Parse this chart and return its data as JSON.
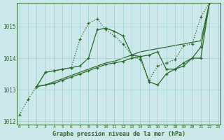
{
  "title": "Graphe pression niveau de la mer (hPa)",
  "bg_color": "#cce8ea",
  "grid_color": "#9ecdd0",
  "line_color": "#2d6a2d",
  "series": {
    "line1": {
      "comment": "dotted line with + markers, big excursion up then down",
      "x": [
        0,
        1,
        2,
        3,
        4,
        5,
        6,
        7,
        8,
        9,
        10,
        11,
        12,
        13,
        14,
        15,
        16,
        17,
        18,
        19,
        20,
        21,
        22,
        23
      ],
      "y": [
        1012.2,
        1012.7,
        1013.1,
        1013.55,
        1013.6,
        1013.65,
        1013.7,
        1014.6,
        1015.1,
        1015.25,
        1014.9,
        1014.7,
        1014.45,
        1014.1,
        1013.95,
        1013.3,
        1013.75,
        1013.85,
        1013.95,
        1014.4,
        1014.45,
        1015.3,
        1015.75,
        1015.8
      ]
    },
    "line2": {
      "comment": "solid line with + markers, moderate peak then dip",
      "x": [
        2,
        3,
        4,
        5,
        6,
        7,
        8,
        9,
        10,
        11,
        12,
        13,
        14,
        15,
        16,
        17,
        18,
        19,
        20,
        21,
        22,
        23
      ],
      "y": [
        1013.1,
        1013.55,
        1013.6,
        1013.65,
        1013.7,
        1013.75,
        1014.0,
        1014.9,
        1014.95,
        1014.85,
        1014.7,
        1014.1,
        1014.05,
        1013.25,
        1013.15,
        1013.5,
        1013.65,
        1013.85,
        1014.0,
        1014.0,
        1015.75,
        1015.8
      ]
    },
    "line3": {
      "comment": "near-straight solid line with + markers - diagonal",
      "x": [
        2,
        3,
        4,
        5,
        6,
        7,
        8,
        9,
        10,
        11,
        12,
        13,
        14,
        15,
        16,
        17,
        18,
        19,
        20,
        21,
        22,
        23
      ],
      "y": [
        1013.1,
        1013.15,
        1013.2,
        1013.3,
        1013.4,
        1013.5,
        1013.6,
        1013.7,
        1013.8,
        1013.85,
        1013.9,
        1014.0,
        1014.05,
        1014.1,
        1014.2,
        1013.65,
        1013.65,
        1013.75,
        1014.0,
        1014.35,
        1015.75,
        1015.8
      ]
    },
    "line4": {
      "comment": "solid straight-ish diagonal line from x=2 to x=23",
      "x": [
        2,
        3,
        4,
        5,
        6,
        7,
        8,
        9,
        10,
        11,
        12,
        13,
        14,
        15,
        16,
        17,
        18,
        19,
        20,
        21,
        22,
        23
      ],
      "y": [
        1013.1,
        1013.15,
        1013.25,
        1013.35,
        1013.45,
        1013.55,
        1013.65,
        1013.75,
        1013.85,
        1013.9,
        1014.0,
        1014.1,
        1014.2,
        1014.25,
        1014.3,
        1014.35,
        1014.4,
        1014.45,
        1014.5,
        1014.55,
        1015.75,
        1015.8
      ]
    }
  },
  "xlim": [
    -0.3,
    23.3
  ],
  "ylim": [
    1011.9,
    1015.75
  ],
  "yticks": [
    1012,
    1013,
    1014,
    1015
  ],
  "xticks": [
    0,
    1,
    2,
    3,
    4,
    5,
    6,
    7,
    8,
    9,
    10,
    11,
    12,
    13,
    14,
    15,
    16,
    17,
    18,
    19,
    20,
    21,
    22,
    23
  ]
}
